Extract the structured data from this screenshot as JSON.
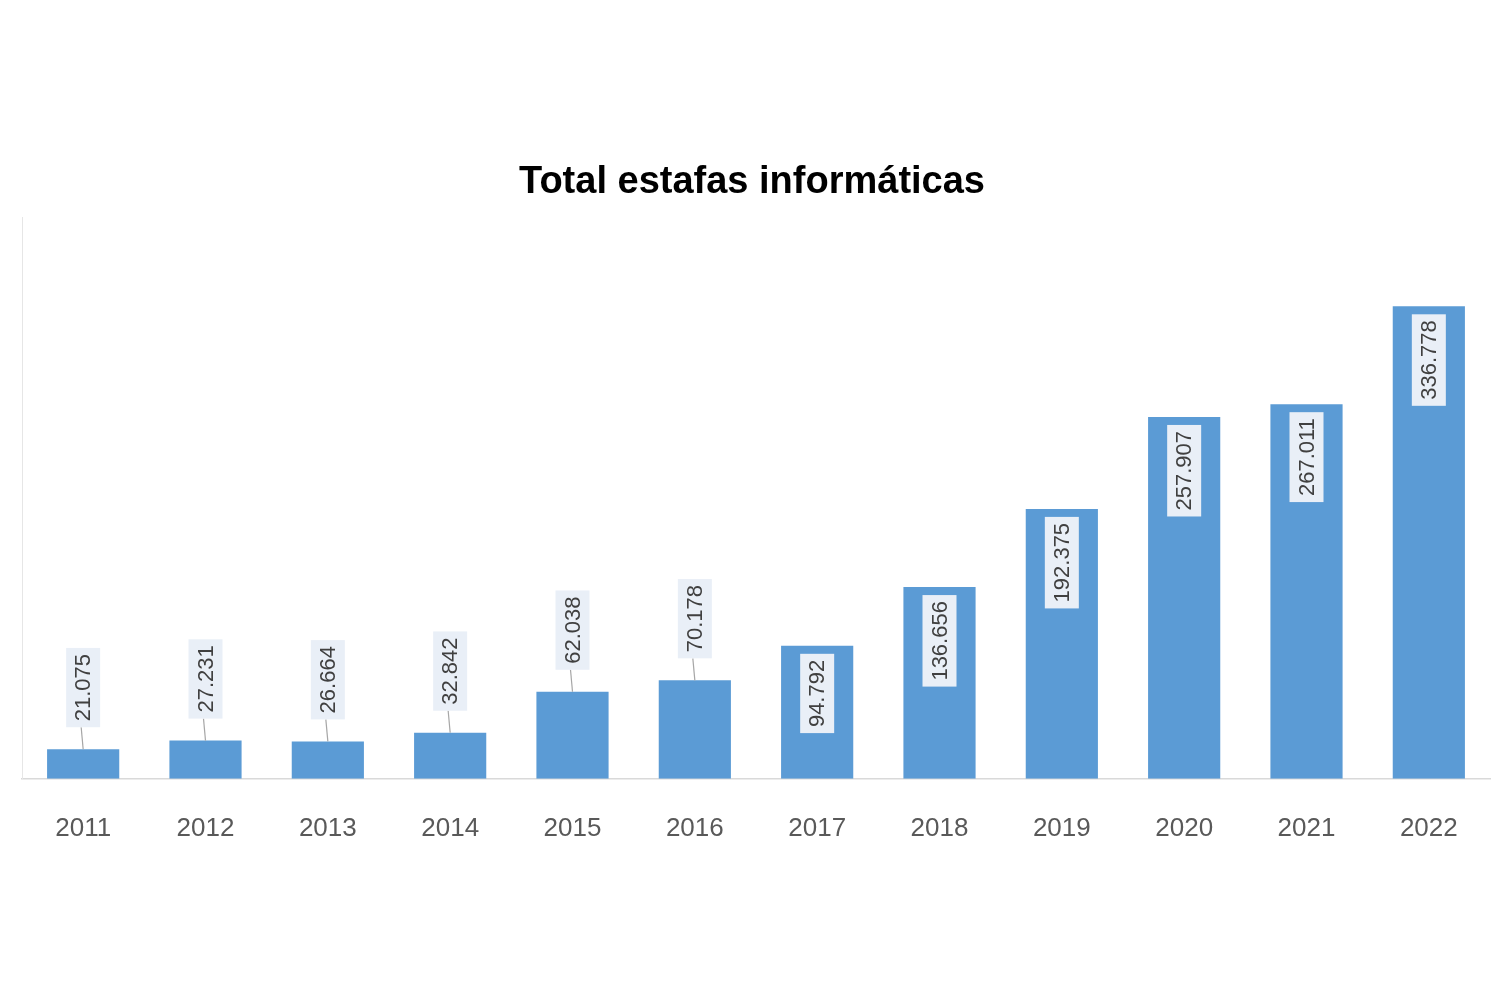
{
  "chart_data": {
    "type": "bar",
    "title": "Total estafas informáticas",
    "categories": [
      "2011",
      "2012",
      "2013",
      "2014",
      "2015",
      "2016",
      "2017",
      "2018",
      "2019",
      "2020",
      "2021",
      "2022"
    ],
    "values": [
      21075,
      27231,
      26664,
      32842,
      62038,
      70178,
      94792,
      136656,
      192375,
      257907,
      267011,
      336778
    ],
    "value_labels": [
      "21.075",
      "27.231",
      "26.664",
      "32.842",
      "62.038",
      "70.178",
      "94.792",
      "136.656",
      "192.375",
      "257.907",
      "267.011",
      "336.778"
    ],
    "color": "#5b9bd5",
    "ylim": [
      0,
      400000
    ],
    "grid": false,
    "data_labels": true,
    "tick_labels": "x"
  }
}
